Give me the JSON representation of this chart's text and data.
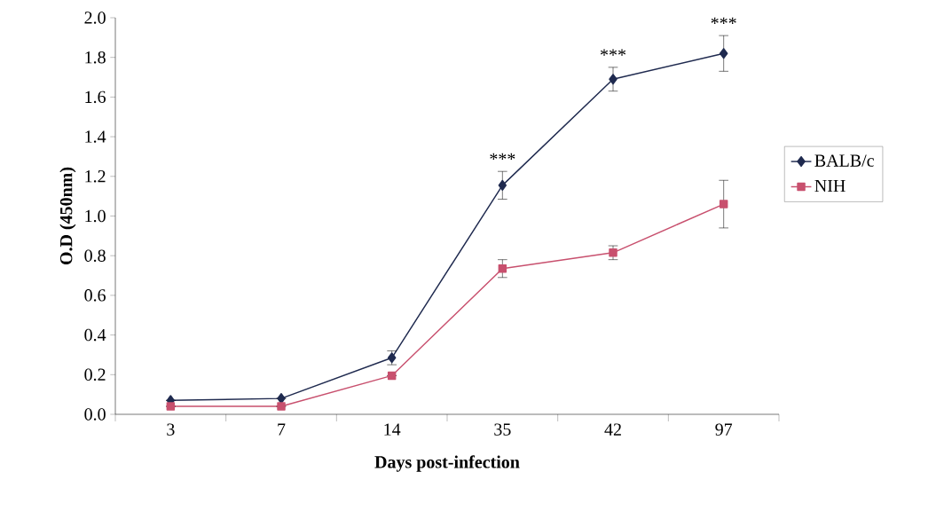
{
  "chart_data": {
    "type": "line",
    "xlabel": "Days post-infection",
    "ylabel": "O.D (450nm)",
    "categories": [
      "3",
      "7",
      "14",
      "35",
      "42",
      "97"
    ],
    "series": [
      {
        "name": "BALB/c",
        "color": "#1f2a4f",
        "marker": "diamond",
        "values": [
          0.07,
          0.08,
          0.285,
          1.155,
          1.69,
          1.82
        ],
        "errors": [
          null,
          null,
          0.035,
          0.07,
          0.06,
          0.09
        ]
      },
      {
        "name": "NIH",
        "color": "#c8506e",
        "marker": "square",
        "values": [
          0.04,
          0.04,
          0.195,
          0.735,
          0.815,
          1.06
        ],
        "errors": [
          null,
          null,
          null,
          0.045,
          0.035,
          0.12
        ]
      }
    ],
    "ylim": [
      0,
      2.0
    ],
    "yticks": [
      {
        "value": 0,
        "label": "0.0"
      },
      {
        "value": 0.2,
        "label": "0.2"
      },
      {
        "value": 0.4,
        "label": "0.4"
      },
      {
        "value": 0.6,
        "label": "0.6"
      },
      {
        "value": 0.8,
        "label": "0.8"
      },
      {
        "value": 1.0,
        "label": "1.0"
      },
      {
        "value": 1.2,
        "label": "1.2"
      },
      {
        "value": 1.4,
        "label": "1.4"
      },
      {
        "value": 1.6,
        "label": "1.6"
      },
      {
        "value": 1.8,
        "label": "1.8"
      },
      {
        "value": 2.0,
        "label": "2.0"
      }
    ],
    "annotations": [
      {
        "text": "***",
        "x": "35",
        "y": 1.155
      },
      {
        "text": "***",
        "x": "42",
        "y": 1.69
      },
      {
        "text": "***",
        "x": "97",
        "y": 1.82
      }
    ],
    "legend": "right",
    "grid": false
  }
}
